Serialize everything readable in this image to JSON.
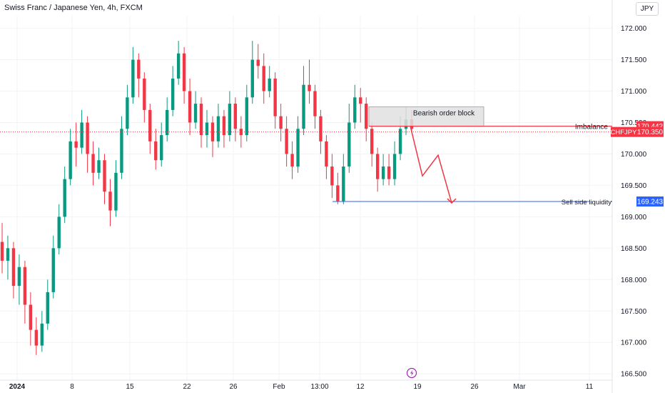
{
  "header": {
    "title": "Swiss Franc / Japanese Yen, 4h, FXCM",
    "currency_button": "JPY"
  },
  "colors": {
    "up": "#089981",
    "down": "#f23645",
    "grid": "#f0f3fa",
    "text": "#131722",
    "price_line": "#f23645",
    "blue_line": "#2962ff",
    "order_block_fill": "#e0e0e0"
  },
  "chart_data": {
    "type": "candlestick",
    "symbol": "CHFJPY",
    "ylim": [
      166.4,
      172.2
    ],
    "y_ticks": [
      "172.000",
      "171.500",
      "171.000",
      "170.500",
      "170.000",
      "169.500",
      "169.000",
      "168.500",
      "168.000",
      "167.500",
      "167.000",
      "166.500"
    ],
    "x_ticks": [
      "2024",
      "8",
      "15",
      "22",
      "26",
      "Feb",
      "13:00",
      "12",
      "19",
      "26",
      "Mar",
      "11"
    ],
    "current_price": {
      "label": "CHFJPY",
      "value": "170.350"
    },
    "price_labels": [
      {
        "text": "Imbalance",
        "value": "170.442"
      },
      {
        "text": "Sell side liquidity",
        "value": "169.243"
      }
    ],
    "annotations": {
      "order_block": "Bearish order block",
      "flash_icon": "lightning-icon"
    },
    "order_block_range": [
      170.44,
      170.75
    ],
    "projection_path": [
      170.4,
      169.65,
      169.98,
      169.22
    ],
    "candles": [
      [
        168.6,
        168.3,
        168.9,
        168.1
      ],
      [
        168.3,
        168.5,
        168.7,
        168.0
      ],
      [
        168.5,
        167.9,
        168.6,
        167.7
      ],
      [
        167.9,
        168.2,
        168.4,
        167.6
      ],
      [
        168.2,
        167.6,
        168.3,
        167.3
      ],
      [
        167.6,
        167.2,
        167.8,
        166.95
      ],
      [
        167.2,
        166.95,
        167.4,
        166.8
      ],
      [
        166.95,
        167.3,
        167.5,
        166.85
      ],
      [
        167.3,
        167.8,
        168.0,
        167.2
      ],
      [
        167.8,
        168.5,
        168.7,
        167.7
      ],
      [
        168.5,
        169.0,
        169.2,
        168.4
      ],
      [
        169.0,
        169.6,
        169.8,
        168.9
      ],
      [
        169.6,
        170.2,
        170.4,
        169.5
      ],
      [
        170.2,
        170.1,
        170.5,
        169.8
      ],
      [
        170.1,
        170.5,
        170.7,
        170.0
      ],
      [
        170.5,
        170.0,
        170.6,
        169.7
      ],
      [
        170.0,
        169.7,
        170.2,
        169.5
      ],
      [
        169.7,
        169.9,
        170.1,
        169.6
      ],
      [
        169.9,
        169.4,
        170.0,
        169.2
      ],
      [
        169.4,
        169.1,
        169.6,
        168.85
      ],
      [
        169.1,
        169.7,
        169.9,
        169.0
      ],
      [
        169.7,
        170.4,
        170.6,
        169.6
      ],
      [
        170.4,
        170.9,
        171.1,
        170.3
      ],
      [
        170.9,
        171.5,
        171.7,
        170.8
      ],
      [
        171.5,
        171.2,
        171.6,
        170.9
      ],
      [
        171.2,
        170.7,
        171.3,
        170.5
      ],
      [
        170.7,
        170.2,
        170.8,
        170.0
      ],
      [
        170.2,
        169.9,
        170.4,
        169.75
      ],
      [
        169.9,
        170.3,
        170.5,
        169.8
      ],
      [
        170.3,
        170.7,
        170.9,
        170.2
      ],
      [
        170.7,
        171.2,
        171.4,
        170.6
      ],
      [
        171.2,
        171.6,
        171.8,
        171.1
      ],
      [
        171.6,
        171.0,
        171.7,
        170.8
      ],
      [
        171.0,
        170.5,
        171.2,
        170.3
      ],
      [
        170.5,
        170.8,
        171.0,
        170.4
      ],
      [
        170.8,
        170.3,
        170.9,
        170.1
      ],
      [
        170.3,
        170.5,
        170.7,
        170.1
      ],
      [
        170.5,
        170.2,
        170.6,
        169.95
      ],
      [
        170.2,
        170.6,
        170.8,
        170.1
      ],
      [
        170.6,
        170.3,
        170.7,
        170.1
      ],
      [
        170.3,
        170.8,
        171.0,
        170.2
      ],
      [
        170.8,
        170.4,
        170.9,
        170.2
      ],
      [
        170.4,
        170.3,
        170.6,
        170.1
      ],
      [
        170.3,
        170.9,
        171.1,
        170.2
      ],
      [
        170.9,
        171.5,
        171.8,
        170.8
      ],
      [
        171.5,
        171.4,
        171.75,
        171.2
      ],
      [
        171.4,
        171.0,
        171.6,
        170.8
      ],
      [
        171.0,
        171.2,
        171.4,
        170.9
      ],
      [
        171.2,
        170.6,
        171.3,
        170.4
      ],
      [
        170.6,
        170.4,
        170.8,
        170.2
      ],
      [
        170.4,
        170.0,
        170.6,
        169.8
      ],
      [
        170.0,
        169.8,
        170.2,
        169.6
      ],
      [
        169.8,
        170.4,
        170.6,
        169.7
      ],
      [
        170.4,
        171.1,
        171.4,
        170.3
      ],
      [
        171.1,
        171.0,
        171.5,
        170.8
      ],
      [
        171.0,
        170.6,
        171.1,
        170.4
      ],
      [
        170.6,
        170.2,
        170.7,
        170.0
      ],
      [
        170.2,
        169.8,
        170.3,
        169.6
      ],
      [
        169.8,
        169.5,
        170.0,
        169.3
      ],
      [
        169.5,
        169.25,
        169.7,
        169.2
      ],
      [
        169.25,
        169.8,
        170.0,
        169.2
      ],
      [
        169.8,
        170.5,
        170.8,
        169.7
      ],
      [
        170.5,
        170.9,
        171.1,
        170.4
      ],
      [
        170.9,
        170.8,
        171.05,
        170.5
      ],
      [
        170.8,
        170.4,
        170.9,
        170.2
      ],
      [
        170.4,
        170.0,
        170.5,
        169.8
      ],
      [
        170.0,
        169.6,
        170.1,
        169.4
      ],
      [
        169.6,
        169.8,
        170.0,
        169.5
      ],
      [
        169.8,
        169.6,
        170.0,
        169.5
      ],
      [
        169.6,
        170.0,
        170.2,
        169.5
      ],
      [
        170.0,
        170.4,
        170.6,
        169.9
      ],
      [
        170.4,
        170.55,
        170.75,
        170.3
      ],
      [
        170.55,
        170.4,
        170.7,
        170.35
      ]
    ]
  }
}
